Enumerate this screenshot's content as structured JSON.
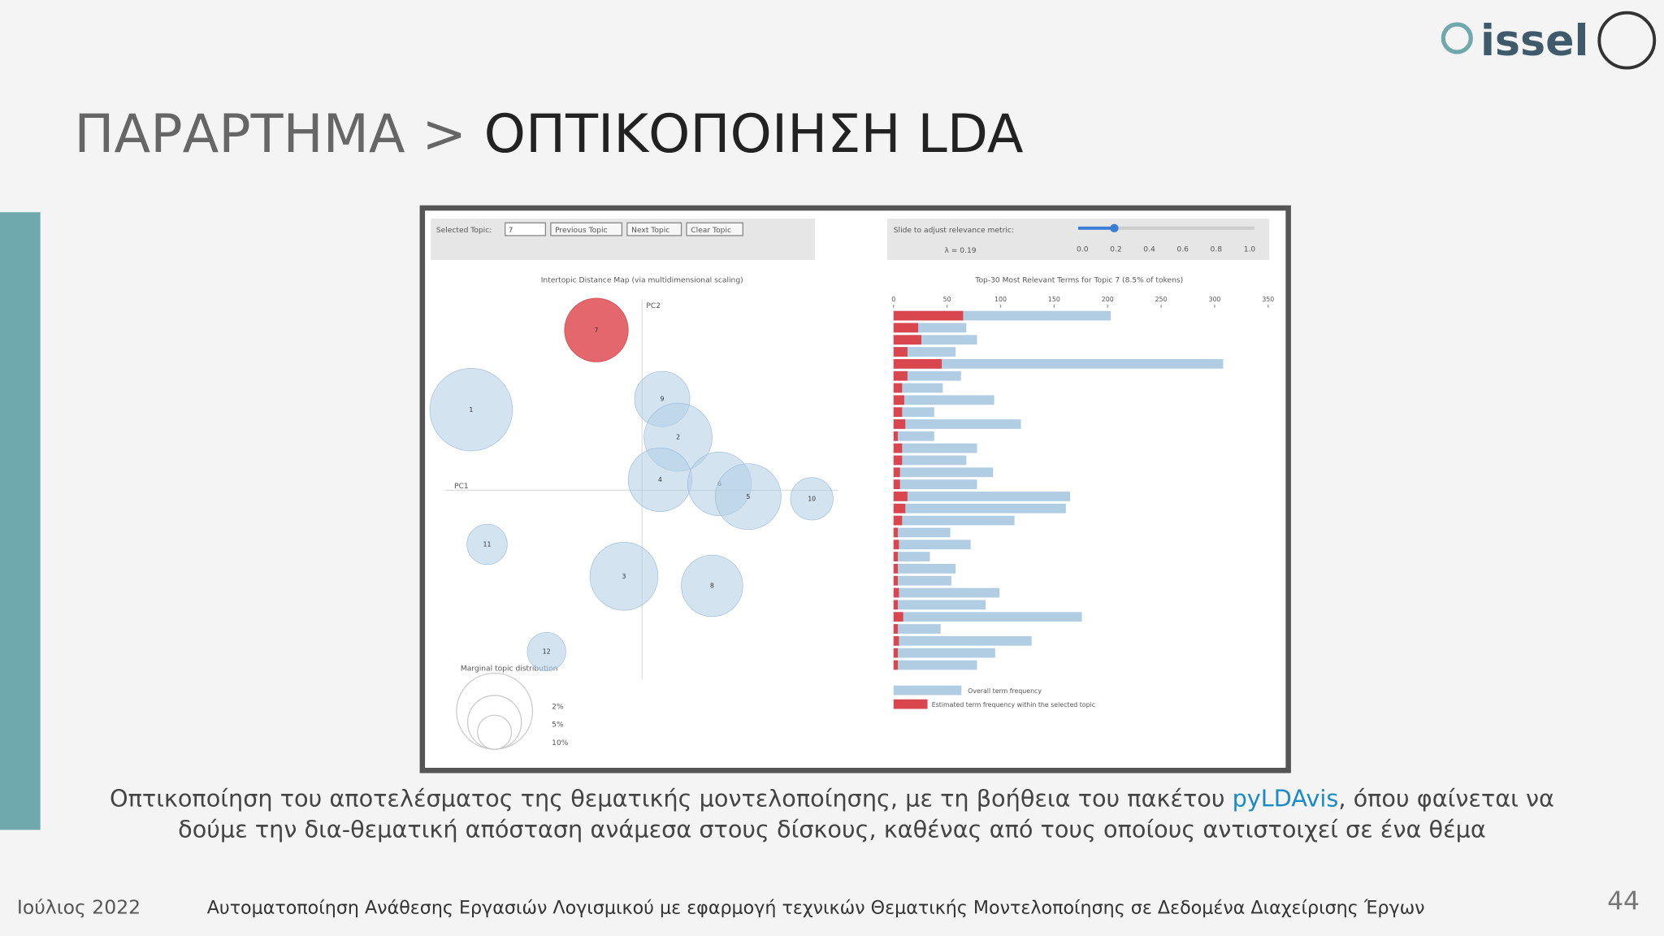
{
  "header": {
    "title_prefix": "ΠΑΡΑΡΤΗΜΑ >",
    "title_main": "ΟΠΤΙΚΟΠΟΙΗΣΗ LDA",
    "logo": "issel"
  },
  "figure": {
    "controls": {
      "selected_topic_label": "Selected Topic:",
      "selected_topic": "7",
      "previous": "Previous Topic",
      "next": "Next Topic",
      "clear": "Clear Topic",
      "slider_label": "Slide to adjust relevance metric:",
      "lambda": "λ = 0.19",
      "slider_ticks": [
        "0.0",
        "0.2",
        "0.4",
        "0.6",
        "0.8",
        "1.0"
      ]
    },
    "map": {
      "title": "Intertopic Distance Map (via multidimensional scaling)",
      "x_label": "PC1",
      "y_label": "PC2",
      "legend_title": "Marginal topic distribution",
      "legend": [
        {
          "size": 2,
          "label": "2%"
        },
        {
          "size": 5,
          "label": "5%"
        },
        {
          "size": 10,
          "label": "10%"
        }
      ],
      "topics": [
        {
          "label": "7",
          "pc1": -0.215,
          "pc2": 0.755,
          "size": 8.5
        },
        {
          "label": "1",
          "pc1": -0.805,
          "pc2": 0.38,
          "size": 14.3
        },
        {
          "label": "9",
          "pc1": 0.095,
          "pc2": 0.43,
          "size": 6.4
        },
        {
          "label": "2",
          "pc1": 0.17,
          "pc2": 0.25,
          "size": 9.7
        },
        {
          "label": "4",
          "pc1": 0.085,
          "pc2": 0.05,
          "size": 8.5
        },
        {
          "label": "6",
          "pc1": 0.365,
          "pc2": 0.03,
          "size": 8.5
        },
        {
          "label": "5",
          "pc1": 0.5,
          "pc2": -0.03,
          "size": 9.1
        },
        {
          "label": "10",
          "pc1": 0.8,
          "pc2": -0.04,
          "size": 3.8
        },
        {
          "label": "11",
          "pc1": -0.73,
          "pc2": -0.255,
          "size": 3.4
        },
        {
          "label": "3",
          "pc1": -0.085,
          "pc2": -0.405,
          "size": 9.7
        },
        {
          "label": "8",
          "pc1": 0.33,
          "pc2": -0.45,
          "size": 7.9
        },
        {
          "label": "12",
          "pc1": -0.45,
          "pc2": -0.76,
          "size": 3.1
        }
      ]
    },
    "bars": {
      "type": "bar",
      "title": "Top-30 Most Relevant Terms for Topic 7 (8.5% of tokens)",
      "xlim": [
        0,
        350
      ],
      "xticks": [
        0,
        50,
        100,
        150,
        200,
        250,
        300,
        350
      ],
      "overall": [
        203,
        68,
        78,
        58,
        308,
        63,
        46,
        94,
        38,
        119,
        38,
        78,
        68,
        93,
        78,
        165,
        161,
        113,
        53,
        72,
        34,
        58,
        54,
        99,
        86,
        176,
        44,
        129,
        95,
        78
      ],
      "estimated": [
        65,
        23,
        26,
        13,
        45,
        13,
        8,
        10,
        8,
        11,
        4,
        8,
        8,
        6,
        6,
        13,
        11,
        8,
        4,
        5,
        4,
        4,
        4,
        5,
        4,
        9,
        4,
        5,
        4,
        4
      ],
      "legend_overall": "Overall term frequency",
      "legend_estimated": "Estimated term frequency within the selected topic",
      "overall_color": "#b0cde3",
      "estimated_color": "#d9464e"
    }
  },
  "caption": {
    "before": "Οπτικοποίηση του αποτελέσματος της θεματικής μοντελοποίησης, με τη βοήθεια του πακέτου ",
    "link": "pyLDAvis",
    "after": ", όπου φαίνεται να",
    "line2": "δούμε την δια-θεματική απόσταση ανάμεσα στους δίσκους, καθένας από τους οποίους αντιστοιχεί σε ένα θέμα"
  },
  "footer": {
    "date": "Ιούλιος 2022",
    "title": "Αυτοματοποίηση Ανάθεσης Εργασιών Λογισμικού με εφαρμογή τεχνικών Θεματικής Μοντελοποίησης σε Δεδομένα Διαχείρισης Έργων",
    "page": "44"
  }
}
